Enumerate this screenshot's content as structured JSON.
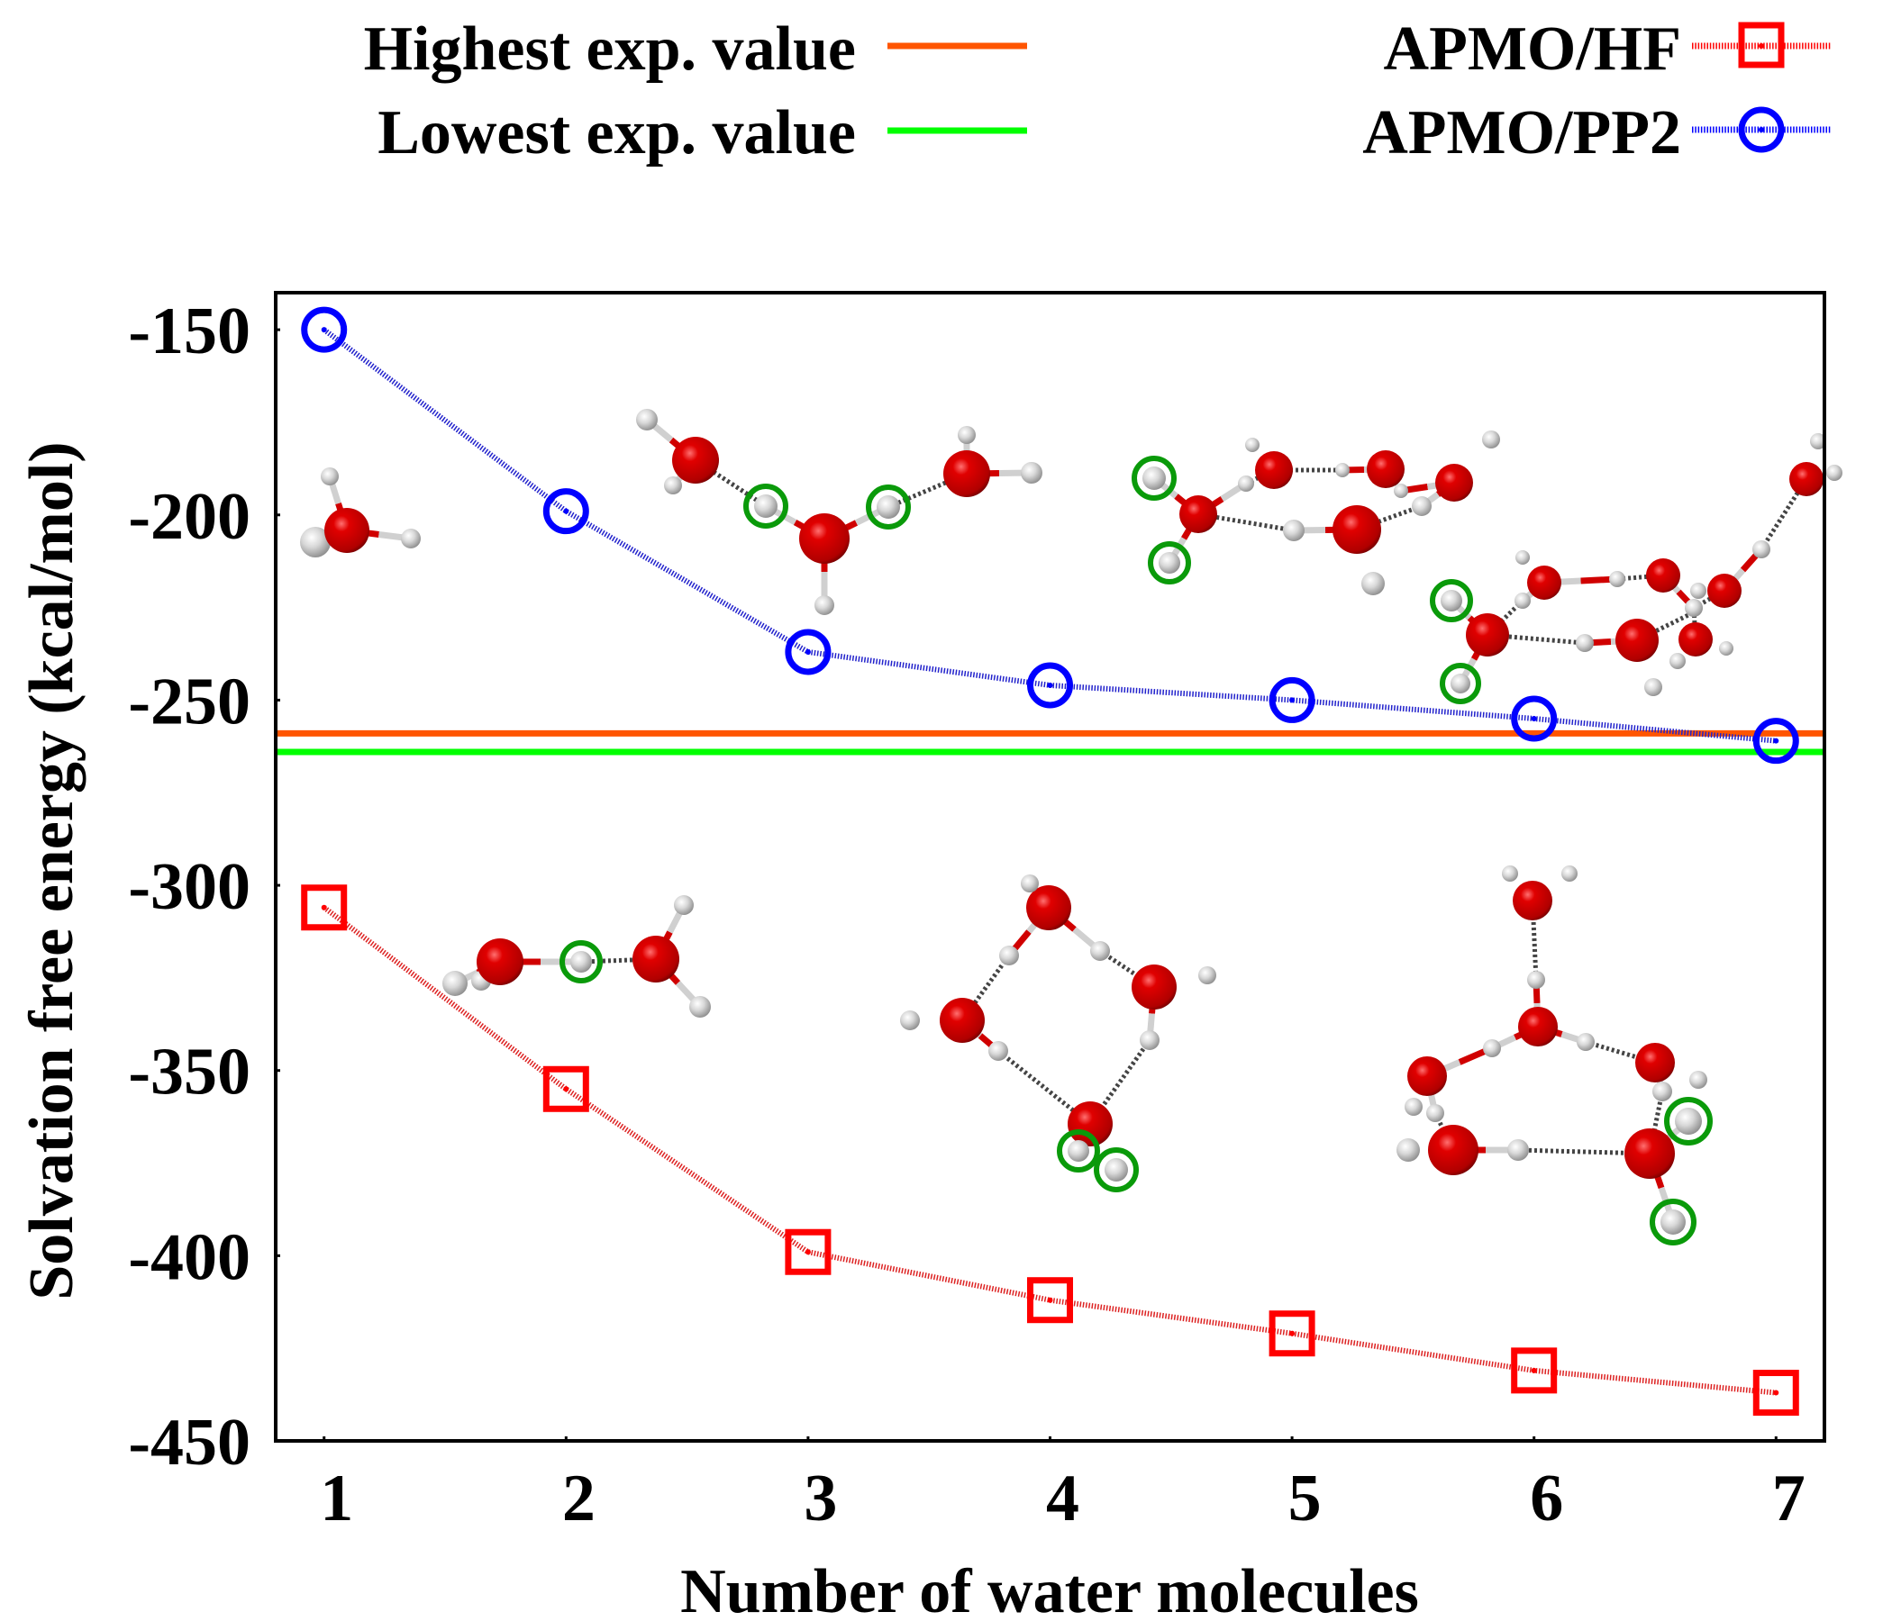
{
  "chart_data": {
    "type": "line",
    "title": "",
    "xlabel": "Number of water molecules",
    "ylabel": "Solvation free energy (kcal/mol)",
    "xlim": [
      0.8,
      7.2
    ],
    "ylim": [
      -450,
      -140
    ],
    "x": [
      1,
      2,
      3,
      4,
      5,
      6,
      7
    ],
    "xticks": [
      1,
      2,
      3,
      4,
      5,
      6,
      7
    ],
    "xtick_labels": [
      "1",
      "2",
      "3",
      "4",
      "5",
      "6",
      "7"
    ],
    "yticks": [
      -150,
      -200,
      -250,
      -300,
      -350,
      -400,
      -450
    ],
    "ytick_labels": [
      "-150",
      "-200",
      "-250",
      "-300",
      "-350",
      "-400",
      "-450"
    ],
    "grid": false,
    "legend_placement": "top (outside plot, two columns)",
    "series": [
      {
        "name": "APMO/HF",
        "marker": "square",
        "line_style": "dotted",
        "color": "#ff0000",
        "line_color": "#dd2222",
        "values": [
          -306,
          -355,
          -399,
          -412,
          -421,
          -431,
          -437
        ]
      },
      {
        "name": "APMO/PP2",
        "marker": "circle",
        "line_style": "dotted",
        "color": "#0000ff",
        "line_color": "#2222cc",
        "values": [
          -150,
          -199,
          -237,
          -246,
          -250,
          -255,
          -261
        ]
      }
    ],
    "reference_lines": [
      {
        "name": "Highest exp. value",
        "value": -259,
        "color": "#ff5500"
      },
      {
        "name": "Lowest exp. value",
        "value": -264,
        "color": "#00ff00"
      }
    ],
    "annotations": [
      "Ball-and-stick water cluster structures for n = 1 to 7 drawn inside the plot (upper row: n = 1, 3, 5, 7; lower row: n = 2, 4, 6) with selected hydrogens highlighted by green rings"
    ]
  },
  "legend": {
    "left": [
      {
        "label": "Highest exp. value",
        "color": "#ff5500"
      },
      {
        "label": "Lowest exp. value",
        "color": "#00ff00"
      }
    ],
    "right": [
      {
        "label": "APMO/HF",
        "color": "#ff0000"
      },
      {
        "label": "APMO/PP2",
        "color": "#0000ff"
      }
    ]
  }
}
